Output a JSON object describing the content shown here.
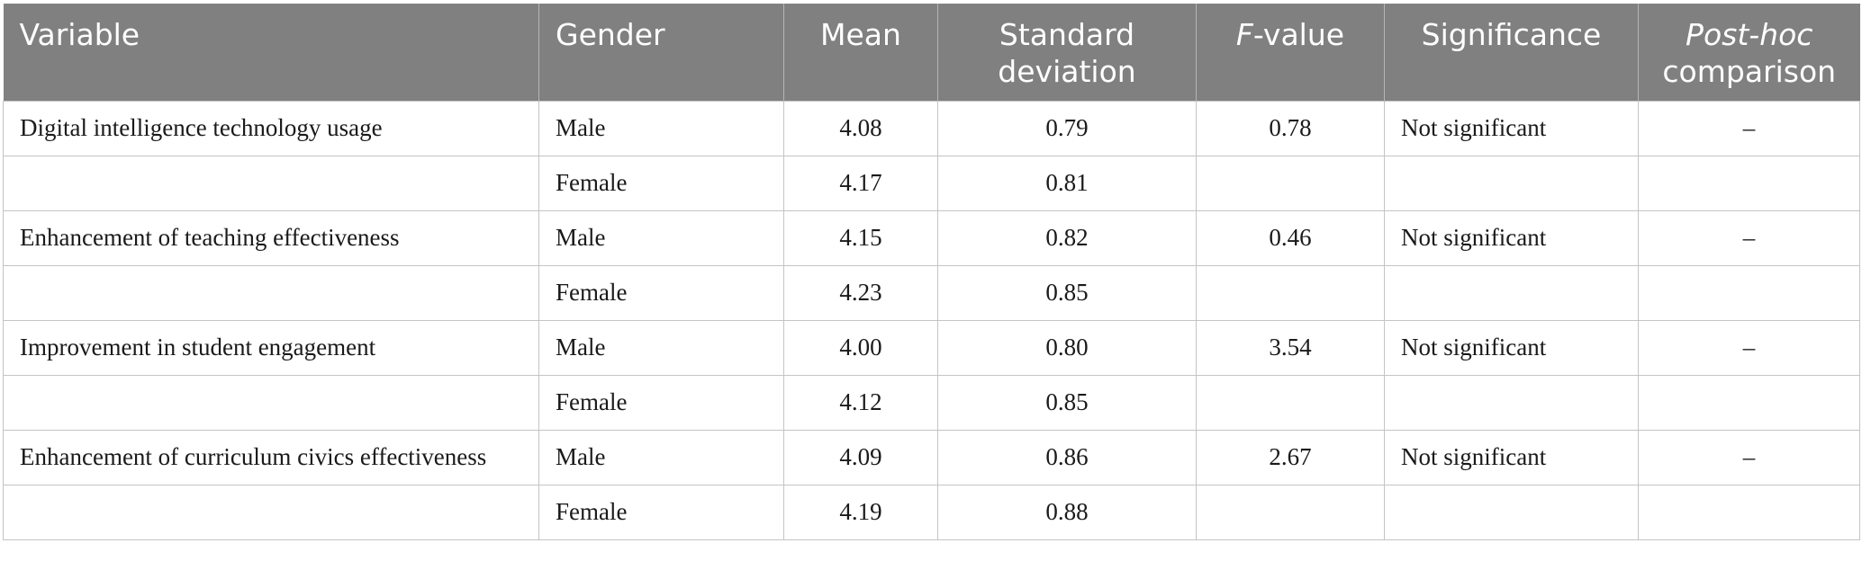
{
  "table": {
    "headers": {
      "variable": "Variable",
      "gender": "Gender",
      "mean": "Mean",
      "sd_line1": "Standard",
      "sd_line2": "deviation",
      "f_italic": "F",
      "f_rest": "-value",
      "significance": "Significance",
      "posthoc_italic": "Post-hoc",
      "posthoc_rest": "comparison"
    },
    "rows": [
      {
        "variable": "Digital intelligence technology usage",
        "gender": "Male",
        "mean": "4.08",
        "sd": "0.79",
        "f": "0.78",
        "significance": "Not significant",
        "posthoc": "–"
      },
      {
        "variable": "",
        "gender": "Female",
        "mean": "4.17",
        "sd": "0.81",
        "f": "",
        "significance": "",
        "posthoc": ""
      },
      {
        "variable": "Enhancement of teaching effectiveness",
        "gender": "Male",
        "mean": "4.15",
        "sd": "0.82",
        "f": "0.46",
        "significance": "Not significant",
        "posthoc": "–"
      },
      {
        "variable": "",
        "gender": "Female",
        "mean": "4.23",
        "sd": "0.85",
        "f": "",
        "significance": "",
        "posthoc": ""
      },
      {
        "variable": "Improvement in student engagement",
        "gender": "Male",
        "mean": "4.00",
        "sd": "0.80",
        "f": "3.54",
        "significance": "Not significant",
        "posthoc": "–"
      },
      {
        "variable": "",
        "gender": "Female",
        "mean": "4.12",
        "sd": "0.85",
        "f": "",
        "significance": "",
        "posthoc": ""
      },
      {
        "variable": "Enhancement of curriculum civics effectiveness",
        "gender": "Male",
        "mean": "4.09",
        "sd": "0.86",
        "f": "2.67",
        "significance": "Not significant",
        "posthoc": "–"
      },
      {
        "variable": "",
        "gender": "Female",
        "mean": "4.19",
        "sd": "0.88",
        "f": "",
        "significance": "",
        "posthoc": ""
      }
    ]
  }
}
